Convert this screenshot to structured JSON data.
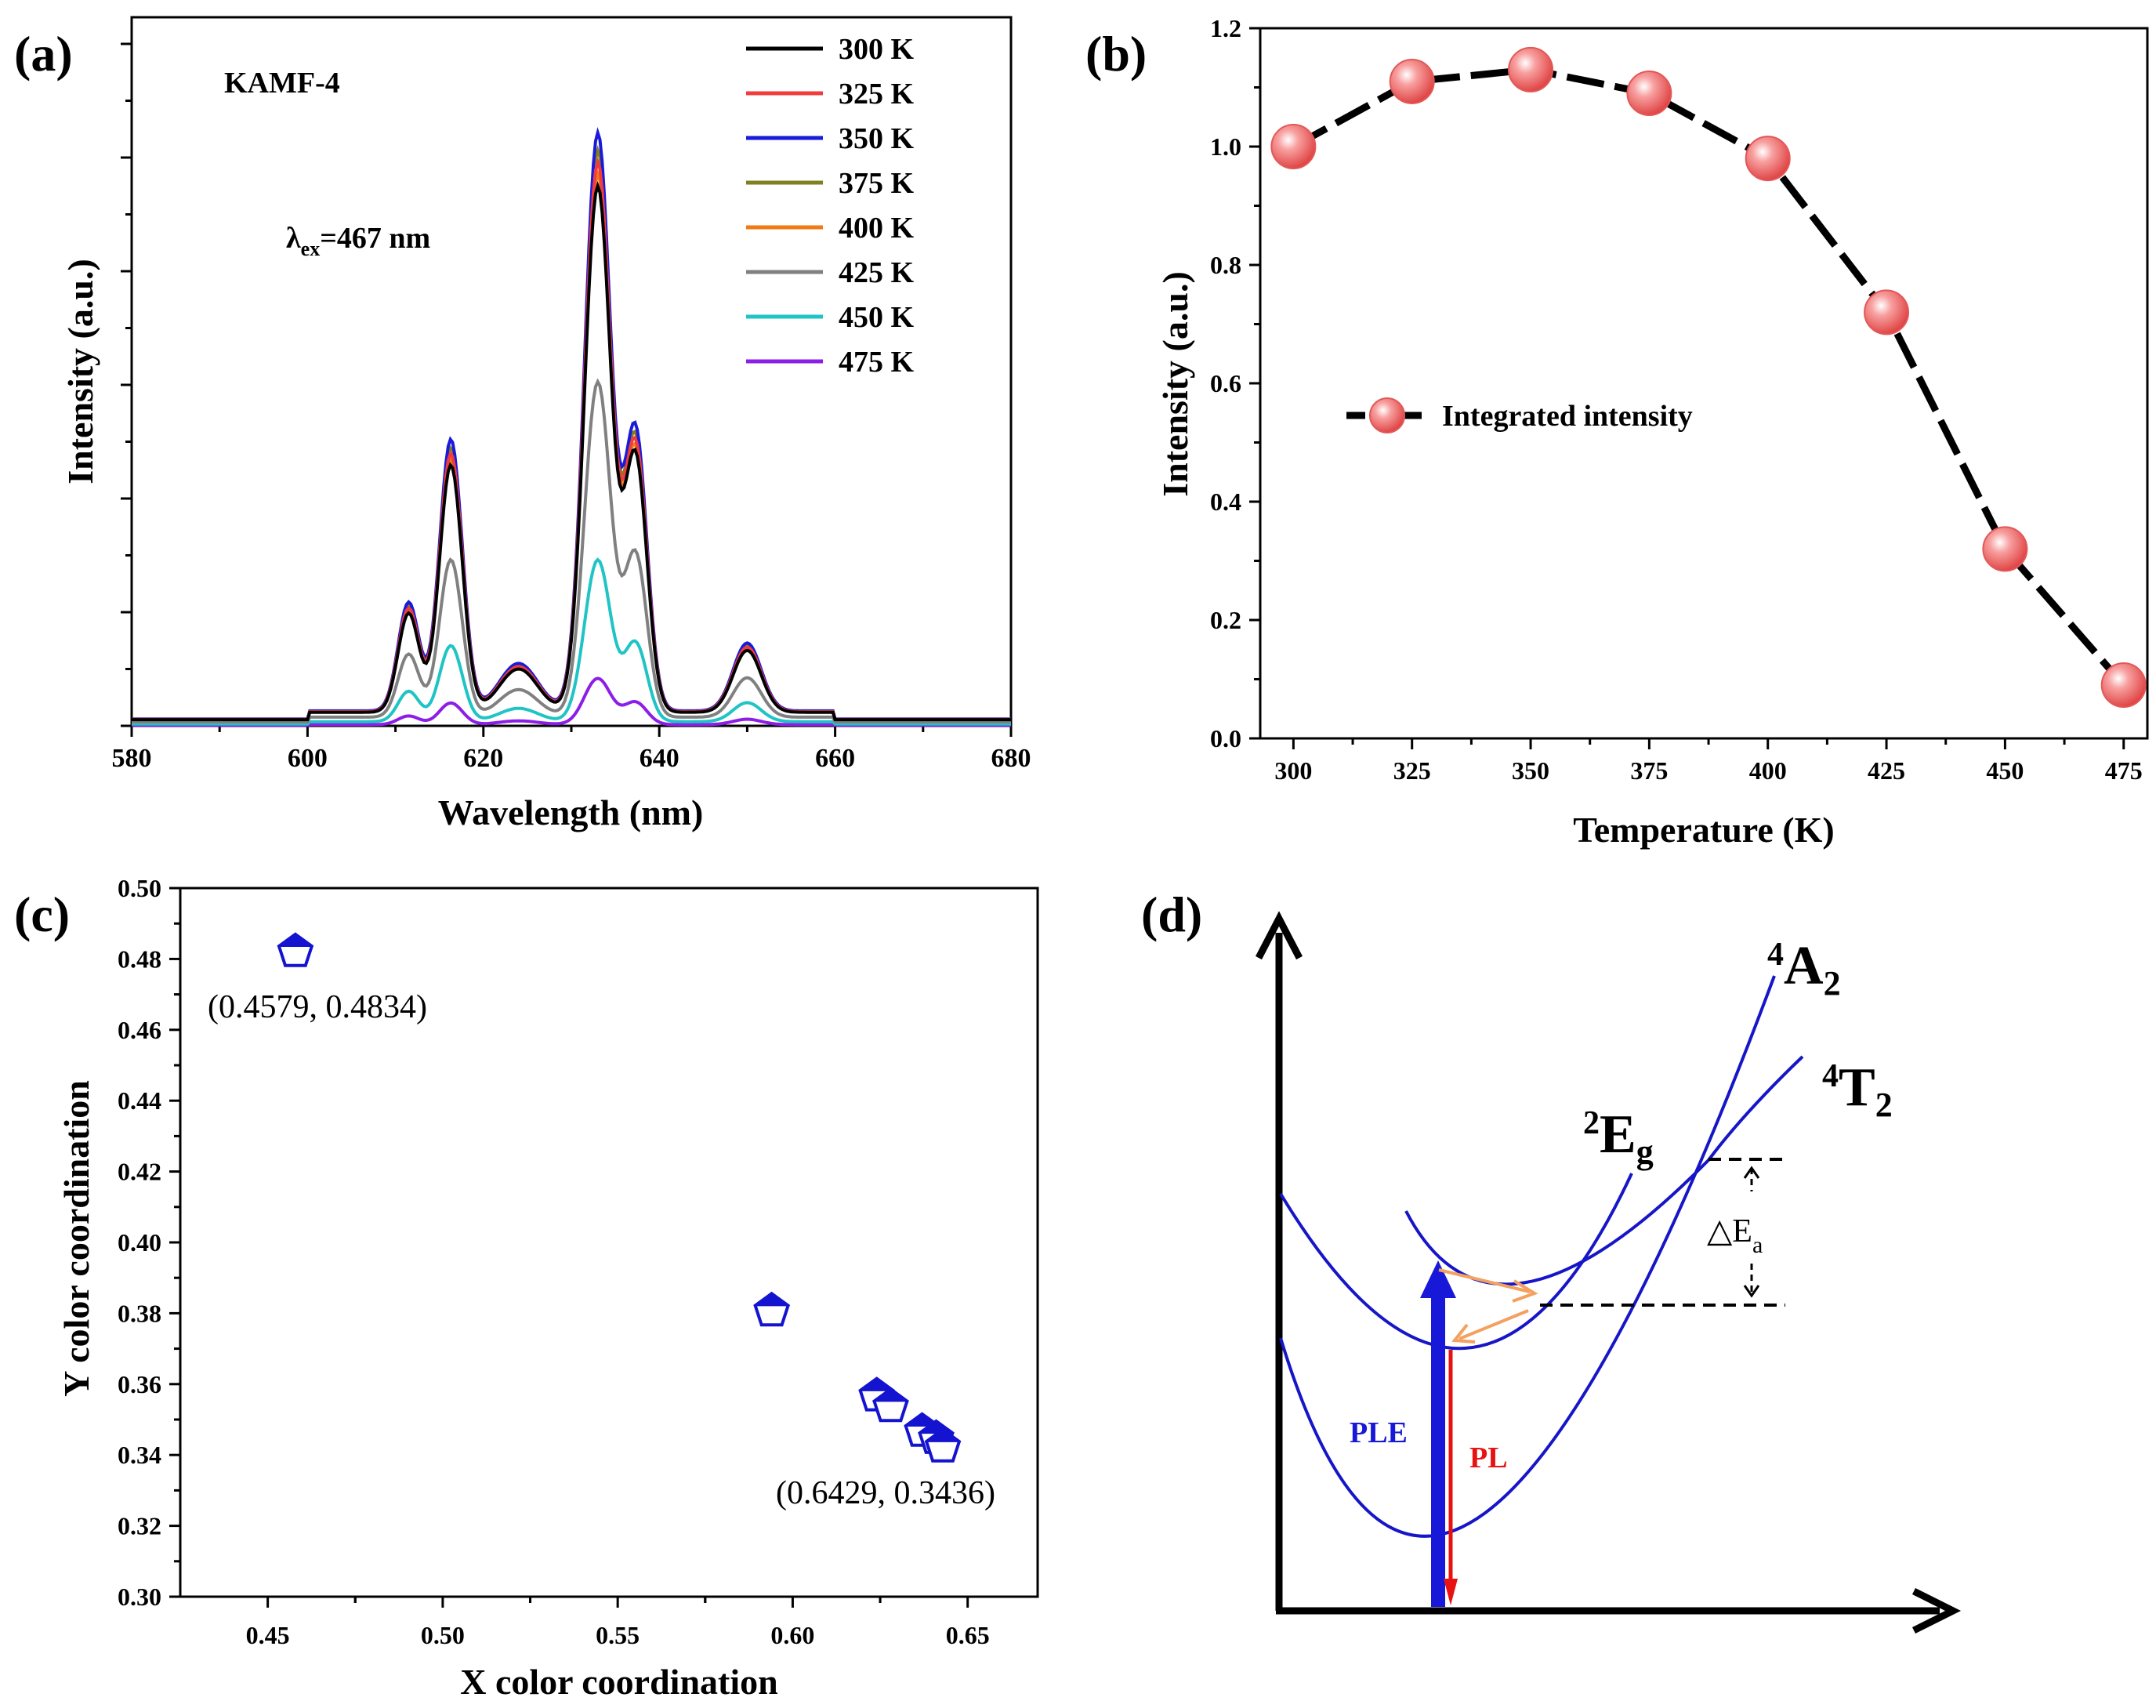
{
  "colors": {
    "axis": "#000000",
    "blue": "#1010d0",
    "red": "#e81010",
    "orange": "#f4a060",
    "marker": "#f07070"
  },
  "panel_a": {
    "label": "(a)",
    "sample": "KAMF-4",
    "lambda_symbol": "λ",
    "lambda_sub": "ex",
    "lambda_value": "=467 nm",
    "chart_data": {
      "type": "line",
      "title": "",
      "xlabel": "Wavelength (nm)",
      "ylabel": "Intensity (a.u.)",
      "xlim": [
        580,
        680
      ],
      "ylim": [
        0,
        1.0
      ],
      "xticks": [
        "580",
        "600",
        "620",
        "640",
        "660",
        "680"
      ],
      "yticks_labeled": false,
      "legend_position": "top-right",
      "peaks": [
        {
          "center": 611.5,
          "height": 0.16,
          "width": 1.2
        },
        {
          "center": 616.3,
          "height": 0.4,
          "width": 1.3
        },
        {
          "center": 624.0,
          "height": 0.07,
          "width": 2.2
        },
        {
          "center": 633.0,
          "height": 0.85,
          "width": 1.5
        },
        {
          "center": 637.3,
          "height": 0.41,
          "width": 1.3
        },
        {
          "center": 650.0,
          "height": 0.1,
          "width": 1.6
        }
      ],
      "baseline": 0.01,
      "series": [
        {
          "name": "300 K",
          "color": "#000000",
          "scale": 0.91
        },
        {
          "name": "325 K",
          "color": "#f03c3c",
          "scale": 0.95
        },
        {
          "name": "350 K",
          "color": "#1a1adc",
          "scale": 1.0
        },
        {
          "name": "375 K",
          "color": "#808020",
          "scale": 0.97
        },
        {
          "name": "400 K",
          "color": "#f07a14",
          "scale": 0.93
        },
        {
          "name": "425 K",
          "color": "#808080",
          "scale": 0.58
        },
        {
          "name": "450 K",
          "color": "#20c4c4",
          "scale": 0.28
        },
        {
          "name": "475 K",
          "color": "#8c1ee6",
          "scale": 0.08
        }
      ]
    }
  },
  "panel_b": {
    "label": "(b)",
    "chart_data": {
      "type": "line",
      "title": "",
      "xlabel": "Temperature (K)",
      "ylabel": "Intensity (a.u.)",
      "x": [
        300,
        325,
        350,
        375,
        400,
        425,
        450,
        475
      ],
      "y": [
        1.0,
        1.11,
        1.13,
        1.09,
        0.98,
        0.72,
        0.32,
        0.09
      ],
      "xlim": [
        293,
        480
      ],
      "ylim": [
        0.0,
        1.2
      ],
      "xticks": [
        "300",
        "325",
        "350",
        "375",
        "400",
        "425",
        "450",
        "475"
      ],
      "yticks": [
        "0.0",
        "0.2",
        "0.4",
        "0.6",
        "0.8",
        "1.0",
        "1.2"
      ],
      "legend_position": "middle-left",
      "series_name": "Integrated intensity"
    }
  },
  "panel_c": {
    "label": "(c)",
    "chart_data": {
      "type": "scatter",
      "title": "",
      "xlabel": "X color coordination",
      "ylabel": "Y color coordination",
      "x": [
        0.4579,
        0.594,
        0.624,
        0.628,
        0.637,
        0.641,
        0.6429
      ],
      "y": [
        0.4834,
        0.382,
        0.358,
        0.355,
        0.348,
        0.346,
        0.3436
      ],
      "xlim": [
        0.425,
        0.67
      ],
      "ylim": [
        0.3,
        0.5
      ],
      "xticks": [
        "0.45",
        "0.50",
        "0.55",
        "0.60",
        "0.65"
      ],
      "yticks": [
        "0.30",
        "0.32",
        "0.34",
        "0.36",
        "0.38",
        "0.40",
        "0.42",
        "0.44",
        "0.46",
        "0.48",
        "0.50"
      ],
      "annotations": [
        {
          "text": "(0.4579, 0.4834)"
        },
        {
          "text": "(0.6429, 0.3436)"
        }
      ]
    }
  },
  "panel_d": {
    "label": "(d)",
    "state_a2": {
      "sup": "4",
      "main": "A",
      "sub": "2"
    },
    "state_t2": {
      "sup": "4",
      "main": "T",
      "sub": "2"
    },
    "state_eg": {
      "sup": "2",
      "main": "E",
      "sub": "g"
    },
    "delta_symbol": "△E",
    "delta_sub": "a",
    "ple": "PLE",
    "pl": "PL"
  }
}
